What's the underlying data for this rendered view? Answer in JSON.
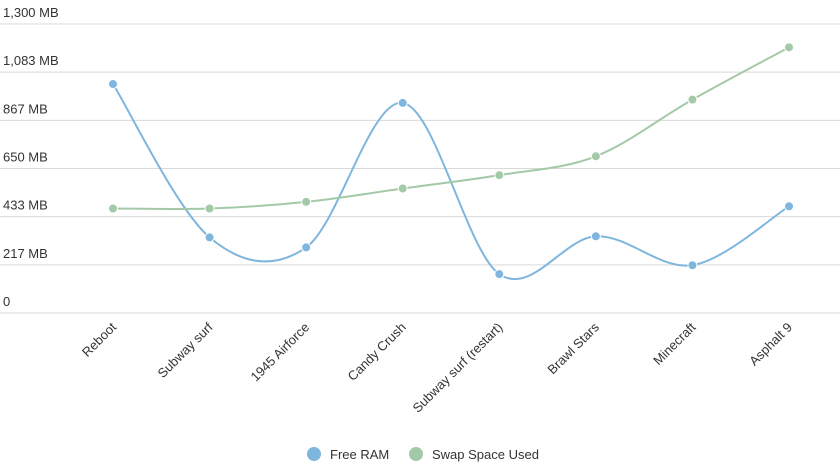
{
  "chart_data": {
    "type": "line",
    "categories": [
      "Reboot",
      "Subway surf",
      "1945 Airforce",
      "Candy Crush",
      "Subway surf (restart)",
      "Brawl Stars",
      "Minecraft",
      "Asphalt 9"
    ],
    "y_ticks": [
      "0",
      "217 MB",
      "433 MB",
      "650 MB",
      "867 MB",
      "1,083 MB",
      "1,300 MB"
    ],
    "ylim": [
      0,
      1300
    ],
    "unit": "MB",
    "grid": true,
    "legend_position": "bottom",
    "series": [
      {
        "name": "Free RAM",
        "color": "#7fb6de",
        "values": [
          1030,
          340,
          295,
          945,
          175,
          345,
          215,
          480
        ]
      },
      {
        "name": "Swap Space Used",
        "color": "#a3c9a8",
        "values": [
          470,
          470,
          500,
          560,
          620,
          705,
          960,
          1195
        ]
      }
    ]
  }
}
